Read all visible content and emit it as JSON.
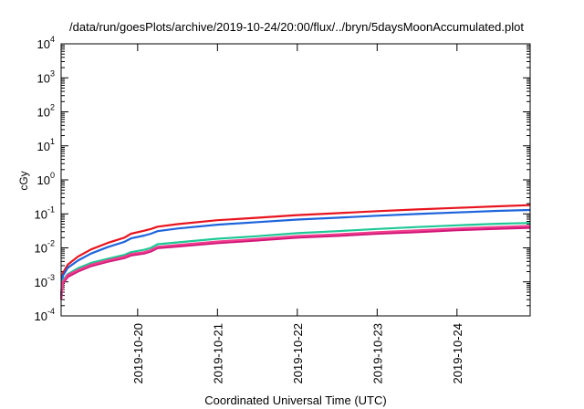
{
  "chart_data": {
    "type": "line",
    "title": "/data/run/goesPlots/archive/2019-10-24/20:00/flux/../bryn/5daysMoonAccumulated.plot",
    "xlabel": "Coordinated Universal Time (UTC)",
    "ylabel": "cGy",
    "y_scale": "log",
    "ylim_exp": [
      -4,
      4
    ],
    "y_tick_exponents": [
      -4,
      -3,
      -2,
      -1,
      0,
      1,
      2,
      3,
      4
    ],
    "y_tick_base": "10",
    "xlim": [
      "2019-10-19T01:00",
      "2019-10-24T22:00"
    ],
    "x_ticks": [
      {
        "date": "2019-10-20",
        "label": "2019-10-20"
      },
      {
        "date": "2019-10-21",
        "label": "2019-10-21"
      },
      {
        "date": "2019-10-22",
        "label": "2019-10-22"
      },
      {
        "date": "2019-10-23",
        "label": "2019-10-23"
      },
      {
        "date": "2019-10-24",
        "label": "2019-10-24"
      }
    ],
    "grid": false,
    "legend": "none",
    "series": [
      {
        "color": "#e8141e",
        "points": [
          [
            "2019-10-19T01:00",
            0.0004
          ],
          [
            "2019-10-19T01:30",
            0.0018
          ],
          [
            "2019-10-19T03:00",
            0.0032
          ],
          [
            "2019-10-19T06:00",
            0.0055
          ],
          [
            "2019-10-19T10:00",
            0.009
          ],
          [
            "2019-10-19T15:00",
            0.014
          ],
          [
            "2019-10-19T20:00",
            0.02
          ],
          [
            "2019-10-19T22:00",
            0.026
          ],
          [
            "2019-10-20T02:00",
            0.032
          ],
          [
            "2019-10-20T04:00",
            0.036
          ],
          [
            "2019-10-20T06:00",
            0.042
          ],
          [
            "2019-10-20T12:00",
            0.05
          ],
          [
            "2019-10-21T00:00",
            0.065
          ],
          [
            "2019-10-21T12:00",
            0.077
          ],
          [
            "2019-10-22T00:00",
            0.092
          ],
          [
            "2019-10-22T12:00",
            0.105
          ],
          [
            "2019-10-23T00:00",
            0.12
          ],
          [
            "2019-10-23T12:00",
            0.135
          ],
          [
            "2019-10-24T00:00",
            0.15
          ],
          [
            "2019-10-24T12:00",
            0.167
          ],
          [
            "2019-10-24T22:00",
            0.18
          ]
        ]
      },
      {
        "color": "#1e64dc",
        "points": [
          [
            "2019-10-19T01:00",
            0.0004
          ],
          [
            "2019-10-19T01:30",
            0.0015
          ],
          [
            "2019-10-19T03:00",
            0.0026
          ],
          [
            "2019-10-19T06:00",
            0.0042
          ],
          [
            "2019-10-19T10:00",
            0.0068
          ],
          [
            "2019-10-19T15:00",
            0.0105
          ],
          [
            "2019-10-19T20:00",
            0.015
          ],
          [
            "2019-10-19T22:00",
            0.019
          ],
          [
            "2019-10-20T02:00",
            0.023
          ],
          [
            "2019-10-20T04:00",
            0.026
          ],
          [
            "2019-10-20T06:00",
            0.031
          ],
          [
            "2019-10-20T12:00",
            0.037
          ],
          [
            "2019-10-21T00:00",
            0.048
          ],
          [
            "2019-10-21T12:00",
            0.057
          ],
          [
            "2019-10-22T00:00",
            0.068
          ],
          [
            "2019-10-22T12:00",
            0.077
          ],
          [
            "2019-10-23T00:00",
            0.088
          ],
          [
            "2019-10-23T12:00",
            0.099
          ],
          [
            "2019-10-24T00:00",
            0.11
          ],
          [
            "2019-10-24T12:00",
            0.122
          ],
          [
            "2019-10-24T22:00",
            0.13
          ]
        ]
      },
      {
        "color": "#1ec896",
        "points": [
          [
            "2019-10-19T01:00",
            0.0003
          ],
          [
            "2019-10-19T01:30",
            0.0011
          ],
          [
            "2019-10-19T03:00",
            0.0017
          ],
          [
            "2019-10-19T06:00",
            0.0025
          ],
          [
            "2019-10-19T10:00",
            0.0036
          ],
          [
            "2019-10-19T15:00",
            0.0048
          ],
          [
            "2019-10-19T20:00",
            0.0062
          ],
          [
            "2019-10-19T22:00",
            0.0075
          ],
          [
            "2019-10-20T02:00",
            0.0088
          ],
          [
            "2019-10-20T04:00",
            0.01
          ],
          [
            "2019-10-20T06:00",
            0.0128
          ],
          [
            "2019-10-20T12:00",
            0.0145
          ],
          [
            "2019-10-21T00:00",
            0.0185
          ],
          [
            "2019-10-21T12:00",
            0.022
          ],
          [
            "2019-10-22T00:00",
            0.027
          ],
          [
            "2019-10-22T12:00",
            0.031
          ],
          [
            "2019-10-23T00:00",
            0.036
          ],
          [
            "2019-10-23T12:00",
            0.041
          ],
          [
            "2019-10-24T00:00",
            0.046
          ],
          [
            "2019-10-24T12:00",
            0.051
          ],
          [
            "2019-10-24T22:00",
            0.054
          ]
        ]
      },
      {
        "color": "#d01478",
        "points": [
          [
            "2019-10-19T01:00",
            0.0003
          ],
          [
            "2019-10-19T01:30",
            0.0009
          ],
          [
            "2019-10-19T03:00",
            0.0014
          ],
          [
            "2019-10-19T06:00",
            0.002
          ],
          [
            "2019-10-19T10:00",
            0.0029
          ],
          [
            "2019-10-19T15:00",
            0.0039
          ],
          [
            "2019-10-19T20:00",
            0.005
          ],
          [
            "2019-10-19T22:00",
            0.006
          ],
          [
            "2019-10-20T02:00",
            0.0068
          ],
          [
            "2019-10-20T04:00",
            0.0078
          ],
          [
            "2019-10-20T06:00",
            0.0098
          ],
          [
            "2019-10-20T12:00",
            0.011
          ],
          [
            "2019-10-21T00:00",
            0.0138
          ],
          [
            "2019-10-21T12:00",
            0.0165
          ],
          [
            "2019-10-22T00:00",
            0.02
          ],
          [
            "2019-10-22T12:00",
            0.0225
          ],
          [
            "2019-10-23T00:00",
            0.026
          ],
          [
            "2019-10-23T12:00",
            0.029
          ],
          [
            "2019-10-24T00:00",
            0.033
          ],
          [
            "2019-10-24T12:00",
            0.0365
          ],
          [
            "2019-10-24T22:00",
            0.039
          ]
        ]
      },
      {
        "color": "#f03c8c",
        "points": [
          [
            "2019-10-19T01:00",
            0.0003
          ],
          [
            "2019-10-19T01:30",
            0.001
          ],
          [
            "2019-10-19T03:00",
            0.0016
          ],
          [
            "2019-10-19T06:00",
            0.0022
          ],
          [
            "2019-10-19T10:00",
            0.0032
          ],
          [
            "2019-10-19T15:00",
            0.0043
          ],
          [
            "2019-10-19T20:00",
            0.0055
          ],
          [
            "2019-10-19T22:00",
            0.0066
          ],
          [
            "2019-10-20T02:00",
            0.0075
          ],
          [
            "2019-10-20T04:00",
            0.0086
          ],
          [
            "2019-10-20T06:00",
            0.0108
          ],
          [
            "2019-10-20T12:00",
            0.0122
          ],
          [
            "2019-10-21T00:00",
            0.0153
          ],
          [
            "2019-10-21T12:00",
            0.0183
          ],
          [
            "2019-10-22T00:00",
            0.0222
          ],
          [
            "2019-10-22T12:00",
            0.025
          ],
          [
            "2019-10-23T00:00",
            0.029
          ],
          [
            "2019-10-23T12:00",
            0.0325
          ],
          [
            "2019-10-24T00:00",
            0.037
          ],
          [
            "2019-10-24T12:00",
            0.041
          ],
          [
            "2019-10-24T22:00",
            0.044
          ]
        ]
      }
    ]
  }
}
